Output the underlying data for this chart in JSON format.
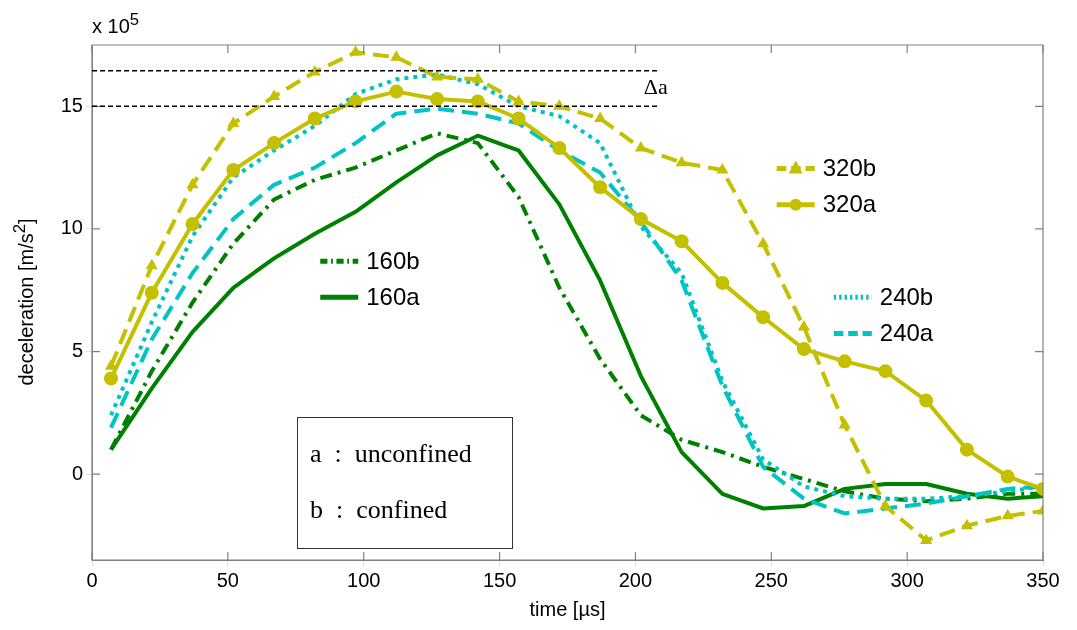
{
  "chart_data": {
    "type": "line",
    "xlabel": "time [µs]",
    "ylabel": "deceleration [m/s$^{2}$]",
    "x": [
      7,
      22,
      37,
      52,
      67,
      82,
      97,
      112,
      127,
      142,
      157,
      172,
      187,
      202,
      217,
      232,
      247,
      262,
      277,
      292,
      307,
      322,
      337,
      350
    ],
    "xlim": [
      0,
      350
    ],
    "xticks": [
      0,
      50,
      100,
      150,
      200,
      250,
      300,
      350
    ],
    "ylim": [
      -3.5,
      17.5
    ],
    "yticks": [
      0,
      5,
      10,
      15
    ],
    "grid": false,
    "series": [
      {
        "name": "320b",
        "color": "#c4c000",
        "line_style": "dashed",
        "marker": "triangle",
        "values": [
          4.4,
          8.5,
          11.8,
          14.3,
          15.4,
          16.4,
          17.2,
          17.0,
          16.2,
          16.1,
          15.2,
          15.0,
          14.5,
          13.3,
          12.7,
          12.4,
          9.4,
          6.0,
          2.0,
          -1.3,
          -2.7,
          -2.1,
          -1.7,
          -1.5
        ]
      },
      {
        "name": "320a",
        "color": "#c4c000",
        "line_style": "solid",
        "marker": "circle",
        "values": [
          3.9,
          7.4,
          10.2,
          12.4,
          13.5,
          14.5,
          15.2,
          15.6,
          15.3,
          15.2,
          14.5,
          13.3,
          11.7,
          10.4,
          9.5,
          7.8,
          6.4,
          5.1,
          4.6,
          4.2,
          3.0,
          1.0,
          -0.1,
          -0.6
        ]
      },
      {
        "name": "240b",
        "color": "#00c4c4",
        "line_style": "dotted",
        "marker": "none",
        "values": [
          2.4,
          6.2,
          9.7,
          12.1,
          13.2,
          14.2,
          15.5,
          16.1,
          16.3,
          15.9,
          15.0,
          14.6,
          13.5,
          10.1,
          8.2,
          3.8,
          0.6,
          -0.5,
          -0.9,
          -1.0,
          -1.0,
          -0.9,
          -0.7,
          -0.5
        ]
      },
      {
        "name": "240a",
        "color": "#00c4c4",
        "line_style": "dashed",
        "marker": "none",
        "values": [
          1.9,
          5.5,
          8.2,
          10.4,
          11.8,
          12.5,
          13.5,
          14.7,
          14.9,
          14.7,
          14.3,
          13.2,
          12.3,
          10.3,
          7.9,
          3.6,
          0.3,
          -1.0,
          -1.6,
          -1.4,
          -1.2,
          -0.9,
          -0.6,
          -0.5
        ]
      },
      {
        "name": "160b",
        "color": "#008000",
        "line_style": "dashdot",
        "marker": "none",
        "values": [
          1.0,
          4.2,
          7.0,
          9.4,
          11.2,
          12.0,
          12.5,
          13.2,
          13.9,
          13.5,
          11.3,
          7.6,
          4.7,
          2.4,
          1.4,
          0.9,
          0.3,
          -0.2,
          -0.7,
          -1.0,
          -1.1,
          -1.0,
          -0.8,
          -0.8
        ]
      },
      {
        "name": "160a",
        "color": "#008000",
        "line_style": "solid",
        "marker": "none",
        "values": [
          1.0,
          3.5,
          5.8,
          7.6,
          8.8,
          9.8,
          10.7,
          11.9,
          13.0,
          13.8,
          13.2,
          11.0,
          7.9,
          4.0,
          0.9,
          -0.8,
          -1.4,
          -1.3,
          -0.6,
          -0.4,
          -0.4,
          -0.8,
          -1.0,
          -0.9
        ]
      }
    ],
    "ref_lines": [
      {
        "axis": "y",
        "value": 16.45,
        "color": "#000000",
        "line_style": "dashed"
      },
      {
        "axis": "y",
        "value": 15.0,
        "color": "#000000",
        "line_style": "dashed"
      }
    ],
    "legend": "right",
    "annotations": [
      "x 10$^{5}$",
      "a  :  unconfined",
      "b  :  confined",
      "Δa"
    ]
  }
}
